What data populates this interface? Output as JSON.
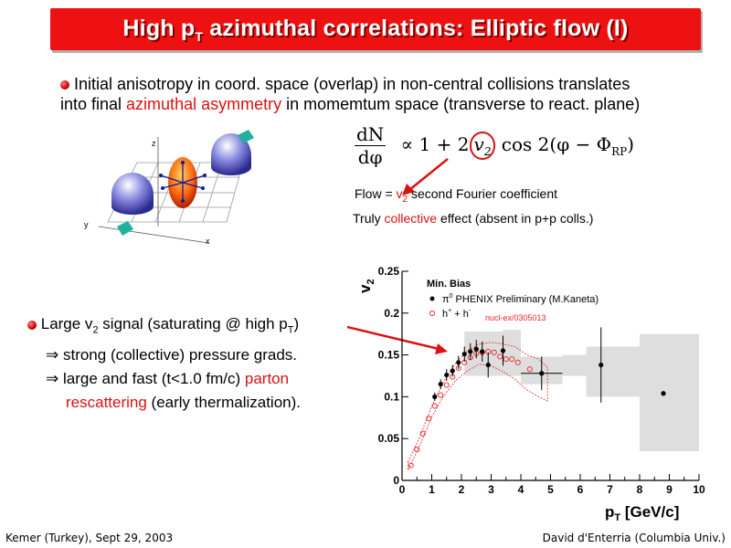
{
  "slide": {
    "title_main": "High p",
    "title_sub": "T",
    "title_rest": " azimuthal correlations: Elliptic flow (I)",
    "intro_line1": "Initial anisotropy in coord. space (overlap) in non-central collisions translates",
    "intro_line2_a": "into final ",
    "intro_line2_red": "azimuthal asymmetry",
    "intro_line2_b": " in momemtum space (transverse to react. plane)",
    "formula_num": "dN",
    "formula_den": "dφ",
    "formula_body_a": "∝  1  +  2",
    "formula_v": "v",
    "formula_v_sub": "2",
    "formula_body_b": " cos 2(φ − Φ",
    "formula_rp": "RP",
    "formula_close": ")",
    "flow_a": "Flow = ",
    "flow_v": "v",
    "flow_sub": "2",
    "flow_b": " second Fourier coefficient",
    "coll_a": "Truly ",
    "coll_red": "collective",
    "coll_b": " effect (absent in p+p colls.)",
    "sig1_a": "Large v",
    "sig1_sub": "2",
    "sig1_b": " signal (saturating @ high p",
    "sig1_sub2": "T",
    "sig1_c": ")",
    "sig2": "⇒  strong (collective) pressure grads.",
    "sig3_a": "⇒ large and fast (t<1.0 fm/c) ",
    "sig3_red": "parton",
    "sig4_red": "rescattering",
    "sig4_b": " (early thermalization).",
    "footer_left": "Kemer (Turkey), Sept 29, 2003",
    "footer_right": "David d'Enterria (Columbia Univ.)",
    "diagram_labels": {
      "z": "z",
      "y": "y",
      "x": "x"
    }
  },
  "colors": {
    "title_bg": "#ee1111",
    "accent_red": "#dd1111",
    "pi0_marker": "#000000",
    "hadron_marker": "#ee2222",
    "syst_band": "#d8d8d8"
  },
  "chart_data": {
    "type": "scatter",
    "ylabel_main": "v",
    "ylabel_sub": "2",
    "xlabel_main": "p",
    "xlabel_sub": "T",
    "xlabel_rest": " [GeV/c]",
    "xlim": [
      0,
      10
    ],
    "ylim": [
      0,
      0.25
    ],
    "xticks": [
      "0",
      "1",
      "2",
      "3",
      "4",
      "5",
      "6",
      "7",
      "8",
      "9",
      "10"
    ],
    "yticks": [
      "0",
      "0.05",
      "0.1",
      "0.15",
      "0.2",
      "0.25"
    ],
    "legend_header": "Min. Bias",
    "legend_pi0_a": "π",
    "legend_pi0_sup": "0",
    "legend_pi0_b": " PHENIX Preliminary (M.Kaneta)",
    "legend_h_a": "h",
    "legend_h_sup1": "+",
    "legend_h_b": " + h",
    "legend_h_sup2": "-",
    "legend_ref": "nucl-ex/0305013",
    "series": [
      {
        "name": "π0 PHENIX Preliminary (M.Kaneta)",
        "points": [
          {
            "x": 1.1,
            "y": 0.1,
            "ey": 0.005
          },
          {
            "x": 1.3,
            "y": 0.115,
            "ey": 0.006
          },
          {
            "x": 1.5,
            "y": 0.126,
            "ey": 0.007
          },
          {
            "x": 1.7,
            "y": 0.131,
            "ey": 0.007
          },
          {
            "x": 1.9,
            "y": 0.141,
            "ey": 0.008
          },
          {
            "x": 2.1,
            "y": 0.151,
            "ey": 0.009
          },
          {
            "x": 2.3,
            "y": 0.154,
            "ey": 0.01
          },
          {
            "x": 2.5,
            "y": 0.157,
            "ey": 0.011
          },
          {
            "x": 2.7,
            "y": 0.154,
            "ey": 0.012
          },
          {
            "x": 2.9,
            "y": 0.138,
            "ey": 0.015
          },
          {
            "x": 3.4,
            "y": 0.155,
            "ey": 0.018
          },
          {
            "x": 4.7,
            "y": 0.128,
            "ey": 0.02,
            "ex": 0.7
          },
          {
            "x": 6.7,
            "y": 0.138,
            "ey": 0.045
          },
          {
            "x": 8.8,
            "y": 0.104,
            "ey": 0.0
          }
        ],
        "syst_bands": [
          {
            "x0": 2.1,
            "x1": 3.4,
            "y0": 0.125,
            "y1": 0.178
          },
          {
            "x0": 3.4,
            "x1": 4.0,
            "y0": 0.125,
            "y1": 0.18
          },
          {
            "x0": 4.0,
            "x1": 5.4,
            "y0": 0.115,
            "y1": 0.148
          },
          {
            "x0": 5.4,
            "x1": 6.2,
            "y0": 0.125,
            "y1": 0.15
          },
          {
            "x0": 6.2,
            "x1": 8.0,
            "y0": 0.1,
            "y1": 0.16
          },
          {
            "x0": 8.0,
            "x1": 10.0,
            "y0": 0.035,
            "y1": 0.175
          }
        ]
      },
      {
        "name": "h+ + h-",
        "points": [
          {
            "x": 0.3,
            "y": 0.018
          },
          {
            "x": 0.5,
            "y": 0.037
          },
          {
            "x": 0.7,
            "y": 0.056
          },
          {
            "x": 0.9,
            "y": 0.074
          },
          {
            "x": 1.1,
            "y": 0.089
          },
          {
            "x": 1.3,
            "y": 0.102
          },
          {
            "x": 1.5,
            "y": 0.114
          },
          {
            "x": 1.7,
            "y": 0.124
          },
          {
            "x": 1.9,
            "y": 0.134
          },
          {
            "x": 2.1,
            "y": 0.141
          },
          {
            "x": 2.3,
            "y": 0.147
          },
          {
            "x": 2.5,
            "y": 0.152
          },
          {
            "x": 2.7,
            "y": 0.153
          },
          {
            "x": 2.9,
            "y": 0.154
          },
          {
            "x": 3.1,
            "y": 0.153
          },
          {
            "x": 3.3,
            "y": 0.148
          },
          {
            "x": 3.5,
            "y": 0.145
          },
          {
            "x": 3.7,
            "y": 0.145
          },
          {
            "x": 3.9,
            "y": 0.141
          },
          {
            "x": 4.3,
            "y": 0.133
          }
        ],
        "band_upper": [
          [
            0.2,
            0.022
          ],
          [
            0.6,
            0.052
          ],
          [
            1.0,
            0.089
          ],
          [
            1.4,
            0.118
          ],
          [
            1.8,
            0.14
          ],
          [
            2.2,
            0.155
          ],
          [
            2.6,
            0.163
          ],
          [
            3.0,
            0.165
          ],
          [
            3.4,
            0.163
          ],
          [
            3.8,
            0.16
          ],
          [
            4.2,
            0.15
          ],
          [
            4.6,
            0.145
          ],
          [
            4.9,
            0.135
          ]
        ],
        "band_lower": [
          [
            0.2,
            0.012
          ],
          [
            0.6,
            0.042
          ],
          [
            1.0,
            0.076
          ],
          [
            1.4,
            0.101
          ],
          [
            1.8,
            0.119
          ],
          [
            2.2,
            0.131
          ],
          [
            2.6,
            0.139
          ],
          [
            3.0,
            0.137
          ],
          [
            3.4,
            0.13
          ],
          [
            3.8,
            0.121
          ],
          [
            4.2,
            0.108
          ],
          [
            4.6,
            0.1
          ],
          [
            4.9,
            0.095
          ]
        ]
      }
    ],
    "legend_placement": "top",
    "grid": false
  }
}
